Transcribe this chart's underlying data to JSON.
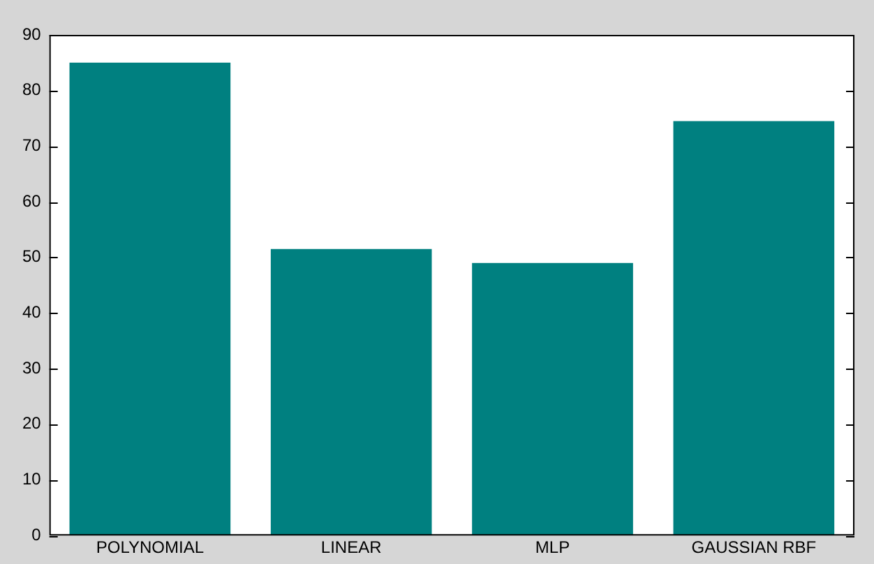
{
  "chart_data": {
    "type": "bar",
    "categories": [
      "POLYNOMIAL",
      "LINEAR",
      "MLP",
      "GAUSSIAN RBF"
    ],
    "values": [
      85,
      51.5,
      49,
      74.5
    ],
    "color": "#008080",
    "ylim": [
      0,
      90
    ],
    "yticks": [
      0,
      10,
      20,
      30,
      40,
      50,
      60,
      70,
      80,
      90
    ],
    "grid": false,
    "legend": false
  }
}
